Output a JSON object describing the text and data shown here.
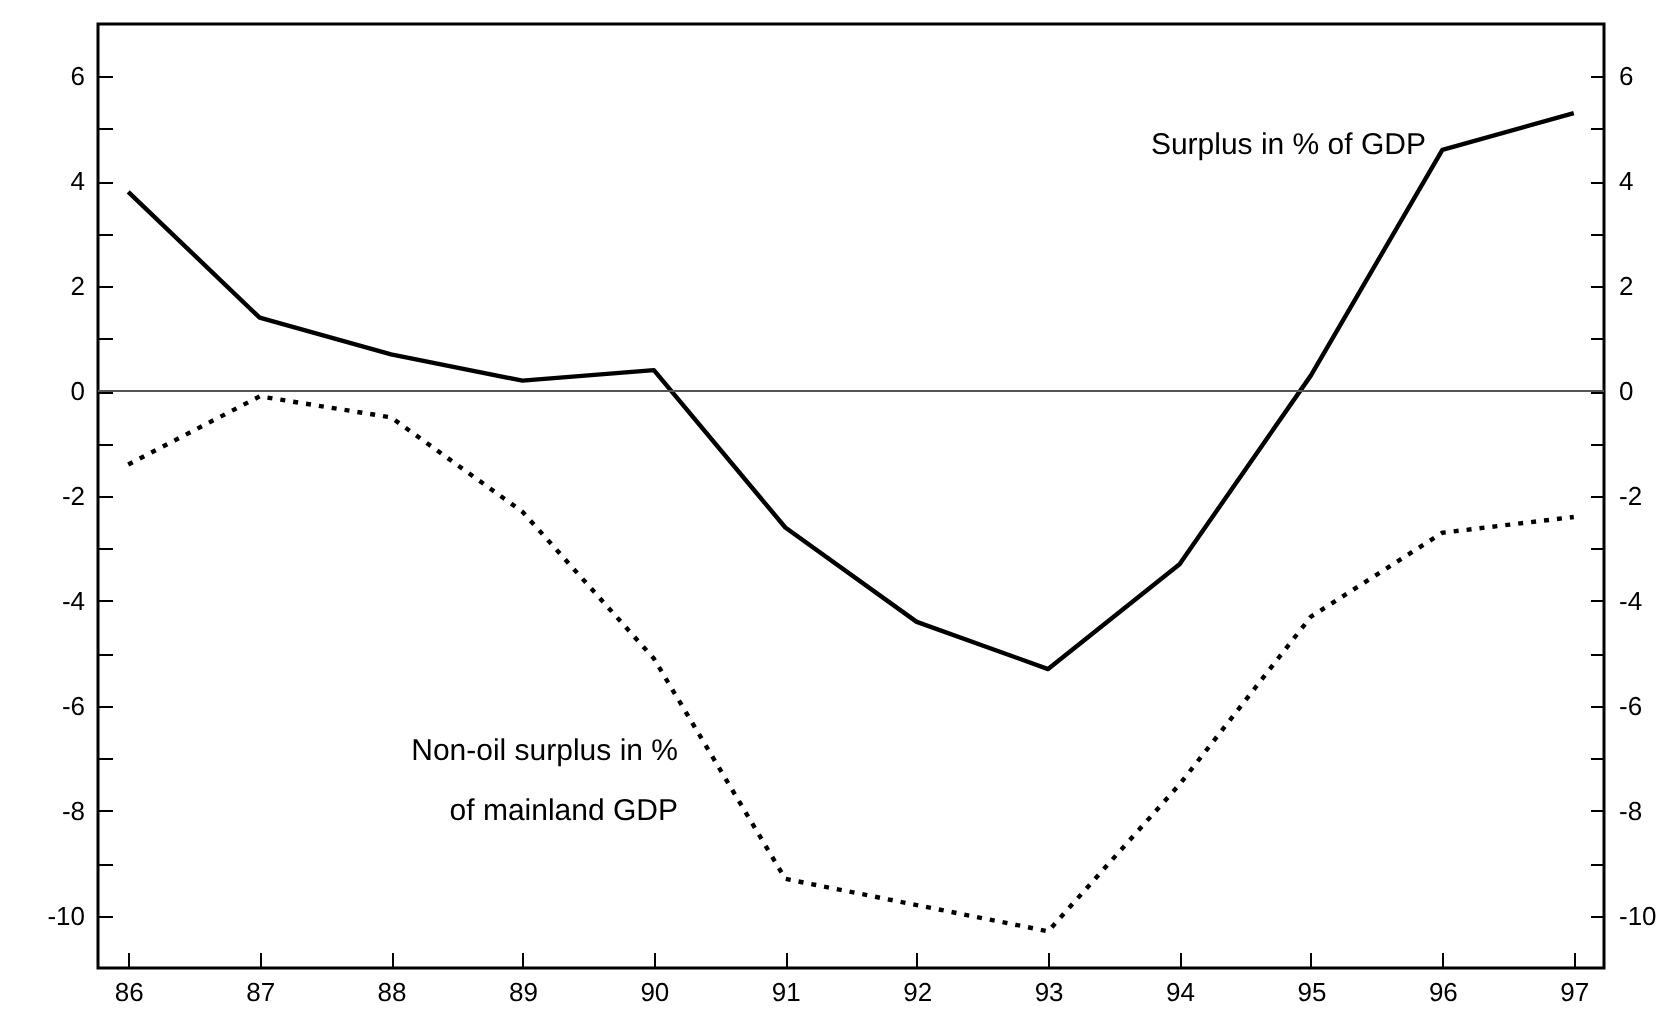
{
  "chart_data": {
    "type": "line",
    "x": [
      86,
      87,
      88,
      89,
      90,
      91,
      92,
      93,
      94,
      95,
      96,
      97
    ],
    "series": [
      {
        "name": "Surplus in % of GDP",
        "color": "#000000",
        "line_style": "solid",
        "values": [
          3.8,
          1.4,
          0.7,
          0.2,
          0.4,
          -2.6,
          -4.4,
          -5.3,
          -3.3,
          0.3,
          4.6,
          5.3
        ]
      },
      {
        "name": "Non-oil surplus in % of mainland GDP",
        "color": "#000000",
        "line_style": "dotted",
        "values": [
          -1.4,
          -0.1,
          -0.5,
          -2.3,
          -5.1,
          -9.3,
          -9.8,
          -10.3,
          -7.5,
          -4.3,
          -2.7,
          -2.4
        ]
      }
    ],
    "xlim": [
      85.77,
      97.23
    ],
    "xticks": [
      86,
      87,
      88,
      89,
      90,
      91,
      92,
      93,
      94,
      95,
      96,
      97
    ],
    "ylim": [
      -11,
      7
    ],
    "yticks": [
      -10,
      {
        "value": -9,
        "label": null
      },
      -8,
      {
        "value": -7,
        "label": null
      },
      -6,
      {
        "value": -5,
        "label": null
      },
      -4,
      {
        "value": -3,
        "label": null
      },
      -2,
      {
        "value": -1,
        "label": null
      },
      0,
      {
        "value": 1,
        "label": null
      },
      2,
      {
        "value": 3,
        "label": null
      },
      4,
      {
        "value": 5,
        "label": null
      },
      6
    ],
    "y2lim": [
      -11,
      7
    ],
    "y2ticks": [
      -10,
      {
        "value": -9,
        "label": null
      },
      -8,
      {
        "value": -7,
        "label": null
      },
      -6,
      {
        "value": -5,
        "label": null
      },
      -4,
      {
        "value": -3,
        "label": null
      },
      -2,
      {
        "value": -1,
        "label": null
      },
      0,
      {
        "value": 1,
        "label": null
      },
      2,
      {
        "value": 3,
        "label": null
      },
      4,
      {
        "value": 5,
        "label": null
      },
      6
    ],
    "ref_lines": [
      {
        "axis": "y",
        "value": 0,
        "color": "#555555"
      }
    ],
    "grid": false,
    "marker": "none"
  }
}
